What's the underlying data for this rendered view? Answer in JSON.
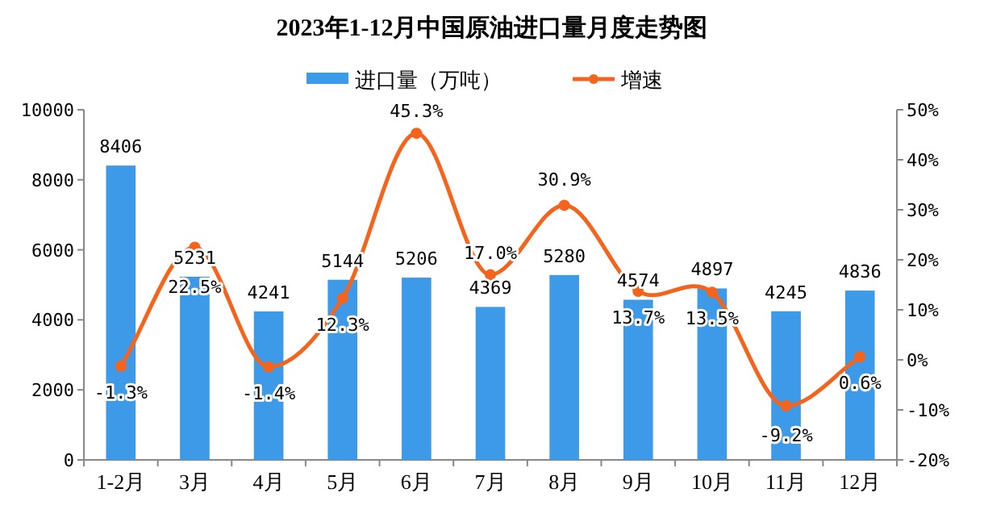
{
  "chart_data": {
    "type": "bar",
    "title": "2023年1-12月中国原油进口量月度走势图",
    "categories": [
      "1-2月",
      "3月",
      "4月",
      "5月",
      "6月",
      "7月",
      "8月",
      "9月",
      "10月",
      "11月",
      "12月"
    ],
    "series": [
      {
        "name": "进口量（万吨）",
        "color": "#3d9ae8",
        "values": [
          8406,
          5231,
          4241,
          5144,
          5206,
          4369,
          5280,
          4574,
          4897,
          4245,
          4836
        ],
        "value_labels": [
          "8406",
          "5231",
          "4241",
          "5144",
          "5206",
          "4369",
          "5280",
          "4574",
          "4897",
          "4245",
          "4836"
        ]
      },
      {
        "name": "增速",
        "type": "line",
        "axis": "y2",
        "color": "#f4641c",
        "marker": "circle",
        "values": [
          -1.3,
          22.5,
          -1.4,
          12.3,
          45.3,
          17.0,
          30.9,
          13.7,
          13.5,
          -9.2,
          0.6
        ],
        "value_labels": [
          "-1.3%",
          "22.5%",
          "-1.4%",
          "12.3%",
          "45.3%",
          "17.0%",
          "30.9%",
          "13.7%",
          "13.5%",
          "-9.2%",
          "0.6%"
        ]
      }
    ],
    "ylim": [
      0,
      10000
    ],
    "yticks": [
      0,
      2000,
      4000,
      6000,
      8000,
      10000
    ],
    "y2lim": [
      -20,
      50
    ],
    "y2ticks": [
      {
        "value": -20,
        "label": "-20%"
      },
      {
        "value": -10,
        "label": "-10%"
      },
      {
        "value": 0,
        "label": "0%"
      },
      {
        "value": 10,
        "label": "10%"
      },
      {
        "value": 20,
        "label": "20%"
      },
      {
        "value": 30,
        "label": "30%"
      },
      {
        "value": 40,
        "label": "40%"
      },
      {
        "value": 50,
        "label": "50%"
      }
    ],
    "legend": "top",
    "grid": false
  }
}
